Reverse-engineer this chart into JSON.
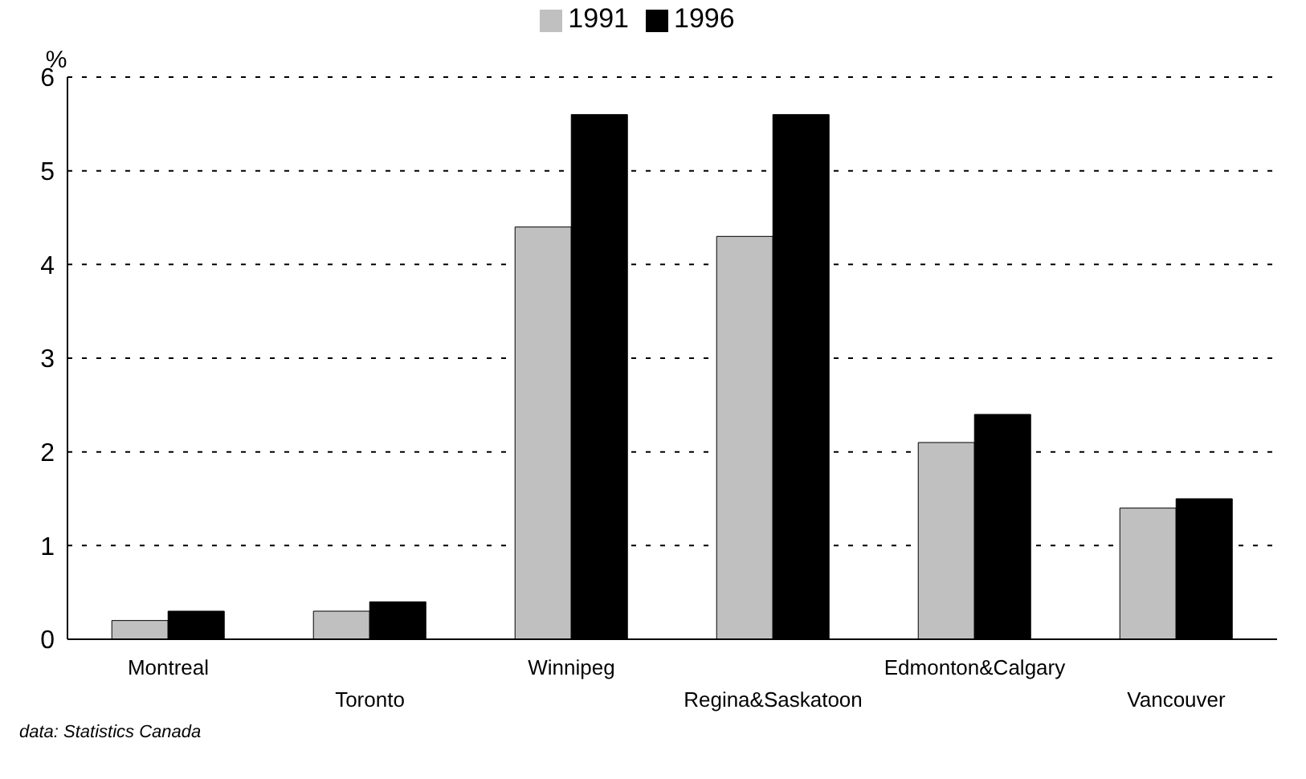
{
  "chart_data": {
    "type": "bar",
    "ylabel": "%",
    "categories": [
      "Montreal",
      "Toronto",
      "Winnipeg",
      "Regina&Saskatoon",
      "Edmonton&Calgary",
      "Vancouver"
    ],
    "series": [
      {
        "name": "1991",
        "color": "#c0c0c0",
        "values": [
          0.2,
          0.3,
          4.4,
          4.3,
          2.1,
          1.4
        ]
      },
      {
        "name": "1996",
        "color": "#000000",
        "values": [
          0.3,
          0.4,
          5.6,
          5.6,
          2.4,
          1.5
        ]
      }
    ],
    "ylim": [
      0,
      6
    ],
    "yticks": [
      0,
      1,
      2,
      3,
      4,
      5,
      6
    ],
    "grid": "y",
    "legend": "top",
    "annotations": [
      "data: Statistics Canada"
    ]
  }
}
